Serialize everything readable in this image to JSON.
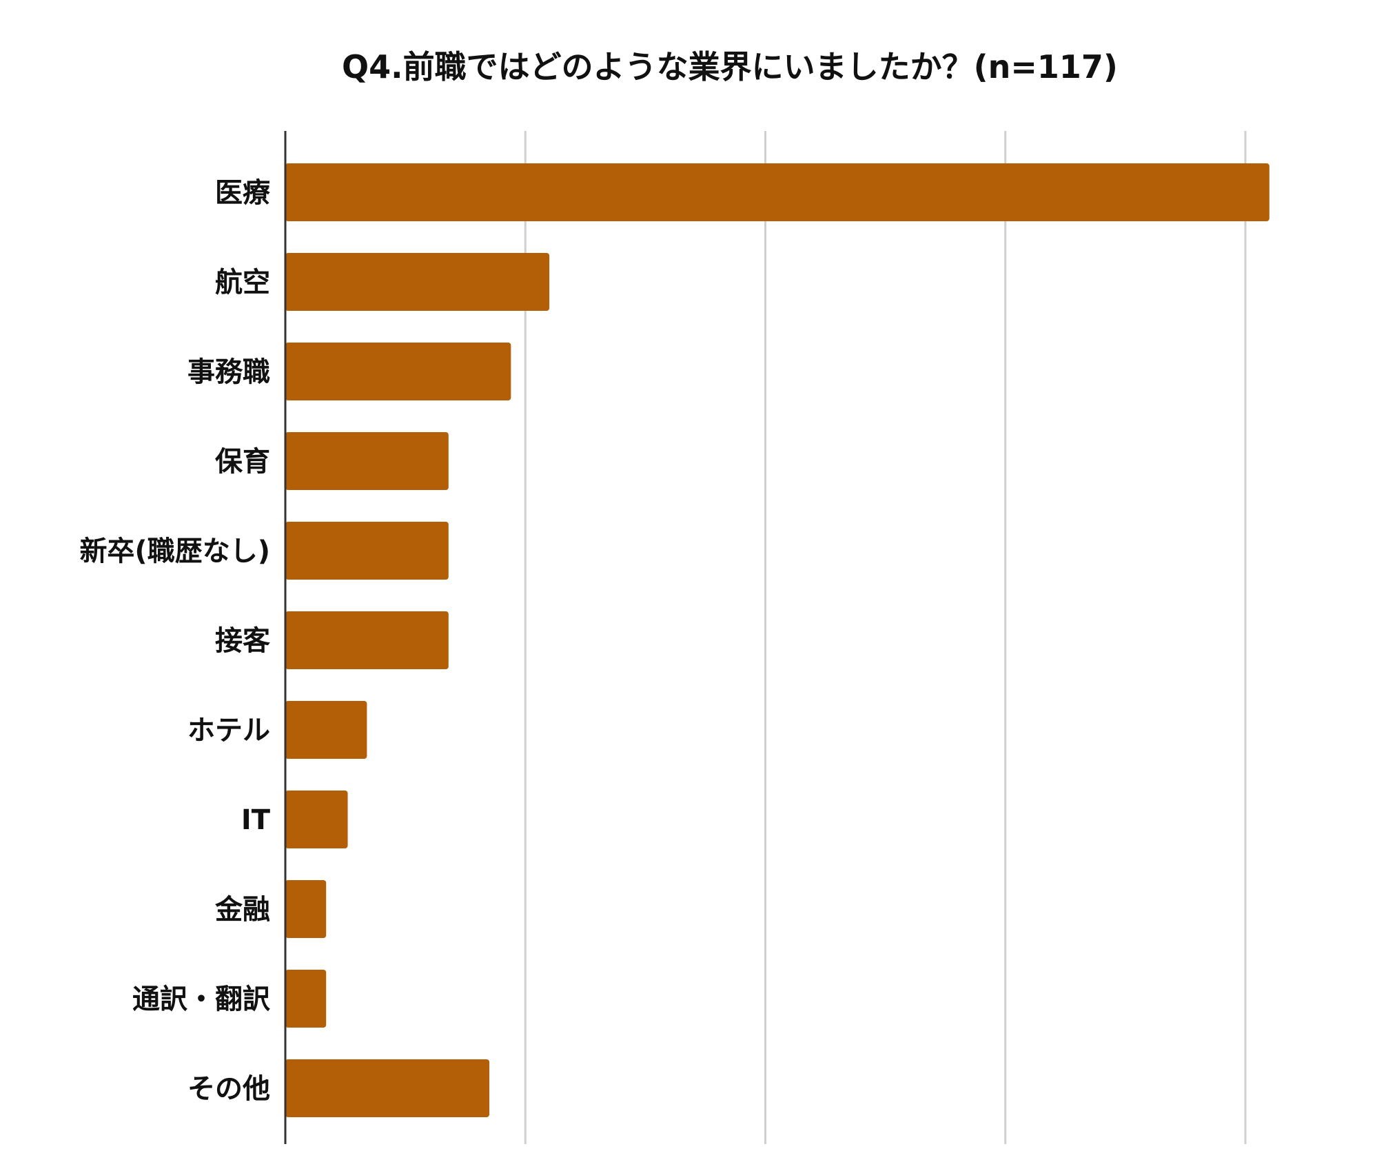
{
  "chart_data": {
    "type": "bar",
    "orientation": "horizontal",
    "title": "Q4.前職ではどのような業界にいましたか？(n=117)",
    "xlabel": "",
    "ylabel": "",
    "categories": [
      "医療",
      "航空",
      "事務職",
      "保育",
      "新卒(職歴なし)",
      "接客",
      "ホテル",
      "IT",
      "金融",
      "通訳・翻訳",
      "その他"
    ],
    "values": [
      41,
      11,
      9.4,
      6.8,
      6.8,
      6.8,
      3.4,
      2.6,
      1.7,
      1.7,
      8.5
    ],
    "xlim": [
      0,
      40
    ],
    "x_gridlines": [
      0,
      10,
      20,
      30,
      40
    ],
    "tick_labels_shown": false,
    "grid": true,
    "legend": "none",
    "bar_color": "#b35f07",
    "grid_color": "#cfcfcf",
    "axis_color": "#333333"
  }
}
